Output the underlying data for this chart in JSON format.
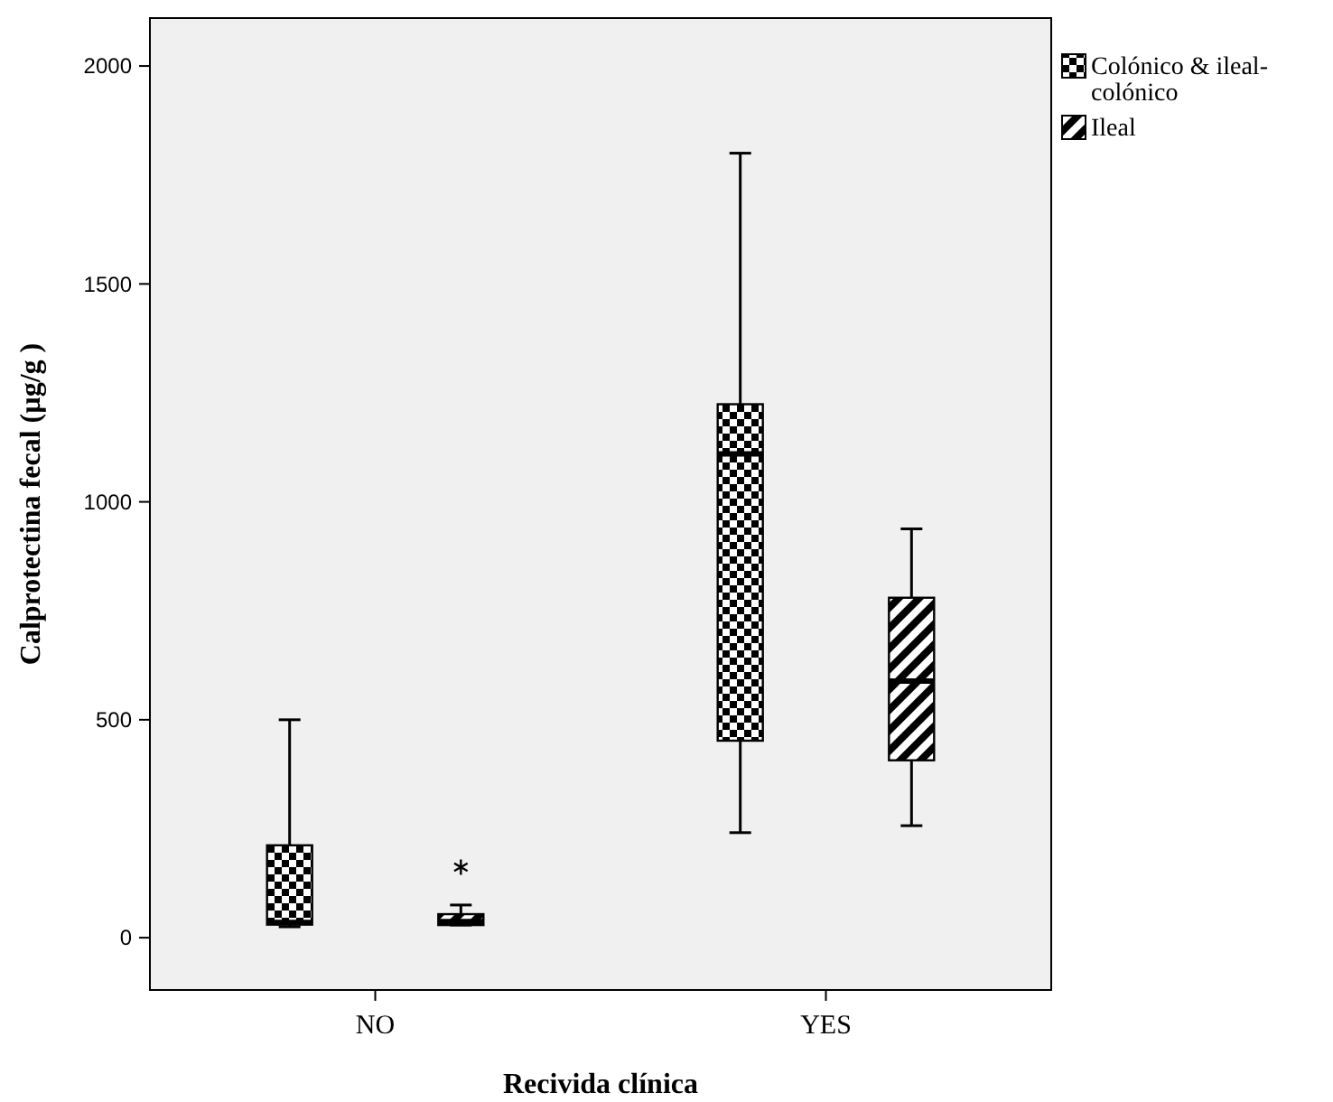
{
  "chart_data": {
    "type": "box",
    "xlabel": "Recivida clínica",
    "ylabel": "Calprotectina fecal (µg/g )",
    "categories": [
      "NO",
      "YES"
    ],
    "ylim": [
      -120,
      2110
    ],
    "yticks": [
      0,
      500,
      1000,
      1500,
      2000
    ],
    "legend": "top right",
    "grid": false,
    "series": [
      {
        "name": "Colónico & ileal-colónico",
        "color": "#000000",
        "boxes": [
          {
            "low": 25,
            "q1": 30,
            "median": 35,
            "q3": 212,
            "high": 500
          },
          {
            "low": 241,
            "q1": 452,
            "median": 1110,
            "q3": 1224,
            "high": 1800
          }
        ]
      },
      {
        "name": "Ileal",
        "color": "#000000",
        "boxes": [
          {
            "low": 29,
            "q1": 29,
            "median": 37,
            "q3": 54,
            "high": 75,
            "outliers": [
              162
            ]
          },
          {
            "low": 257,
            "q1": 407,
            "median": 589,
            "q3": 780,
            "high": 938
          }
        ]
      }
    ]
  }
}
